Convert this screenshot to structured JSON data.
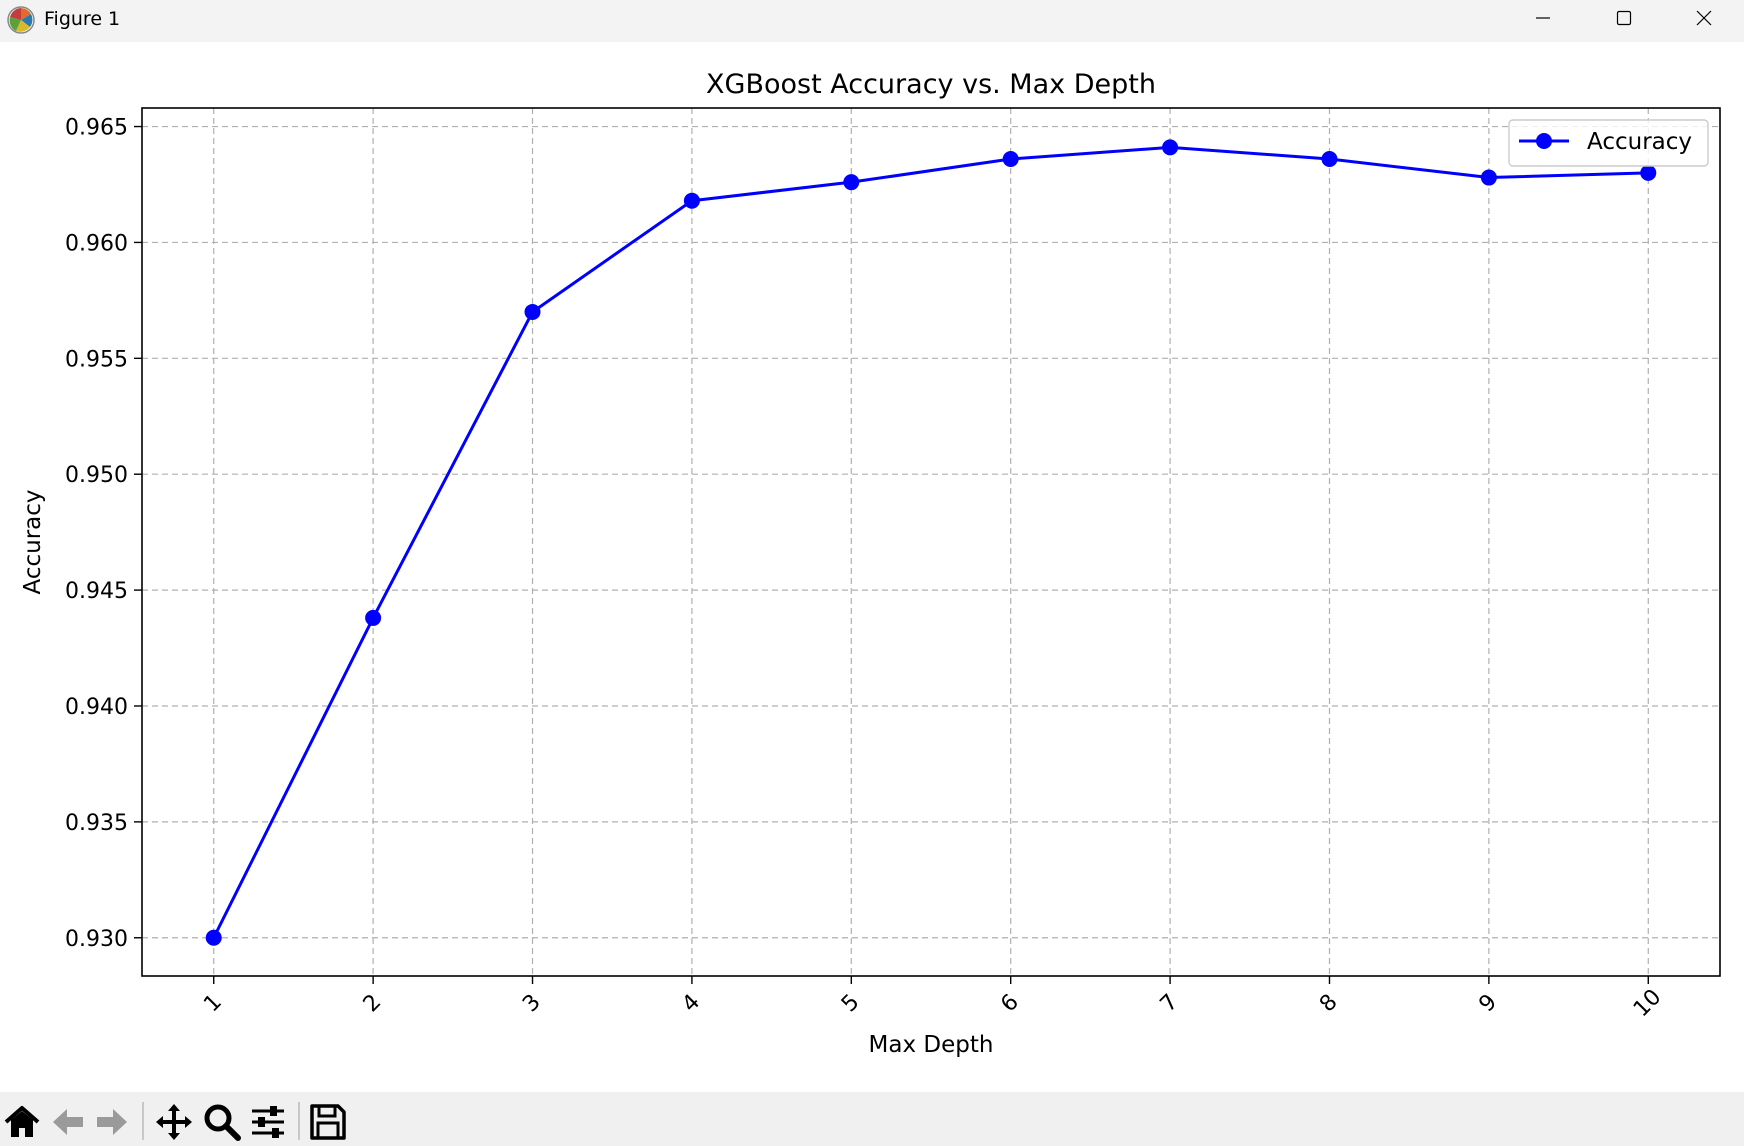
{
  "window": {
    "title": "Figure 1"
  },
  "toolbar": {
    "tools": [
      "home-icon",
      "back-arrow-icon",
      "forward-arrow-icon",
      "pan-icon",
      "zoom-icon",
      "configure-subplots-icon",
      "save-icon"
    ]
  },
  "chart_data": {
    "type": "line",
    "title": "XGBoost Accuracy vs. Max Depth",
    "xlabel": "Max Depth",
    "ylabel": "Accuracy",
    "x": [
      1,
      2,
      3,
      4,
      5,
      6,
      7,
      8,
      9,
      10
    ],
    "xticks": [
      "1",
      "2",
      "3",
      "4",
      "5",
      "6",
      "7",
      "8",
      "9",
      "10"
    ],
    "yticks": [
      "0.930",
      "0.935",
      "0.940",
      "0.945",
      "0.950",
      "0.955",
      "0.960",
      "0.965"
    ],
    "ytick_values": [
      0.93,
      0.935,
      0.94,
      0.945,
      0.95,
      0.955,
      0.96,
      0.965
    ],
    "xlim": [
      0.55,
      10.45
    ],
    "ylim": [
      0.92835,
      0.9658
    ],
    "series": [
      {
        "name": "Accuracy",
        "color": "#0000ff",
        "marker": "circle",
        "values": [
          0.93,
          0.9438,
          0.957,
          0.9618,
          0.9626,
          0.9636,
          0.9641,
          0.9636,
          0.9628,
          0.963
        ]
      }
    ],
    "grid": true,
    "legend": "top-right"
  }
}
